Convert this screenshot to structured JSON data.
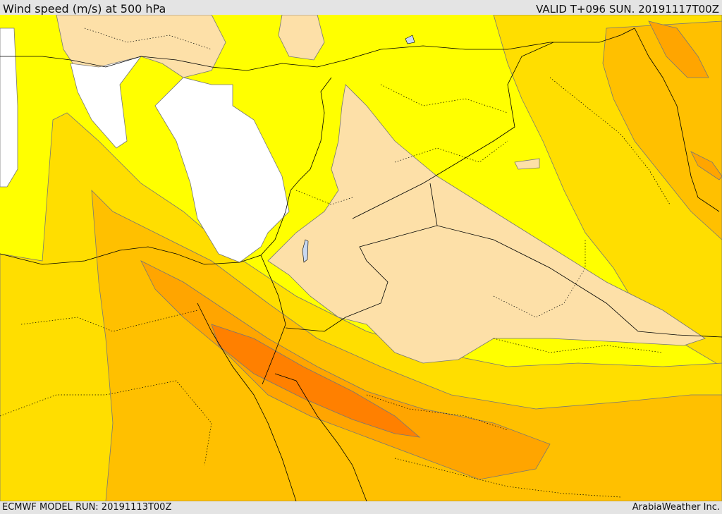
{
  "header": {
    "title": "Wind speed (m/s) at 500 hPa",
    "valid": "VALID T+096 SUN. 20191117T00Z"
  },
  "footer": {
    "model_run": "ECMWF MODEL RUN: 20191113T00Z",
    "credit": "ArabiaWeather Inc."
  },
  "colors": {
    "band_white": "#ffffff",
    "band_peach": "#fde0a8",
    "band_yellow": "#ffff00",
    "band_gold": "#ffde00",
    "band_amber": "#ffc000",
    "band_orange": "#ffa500",
    "band_dark_orange": "#ff8000",
    "contour": "#777777",
    "border": "#000000"
  }
}
